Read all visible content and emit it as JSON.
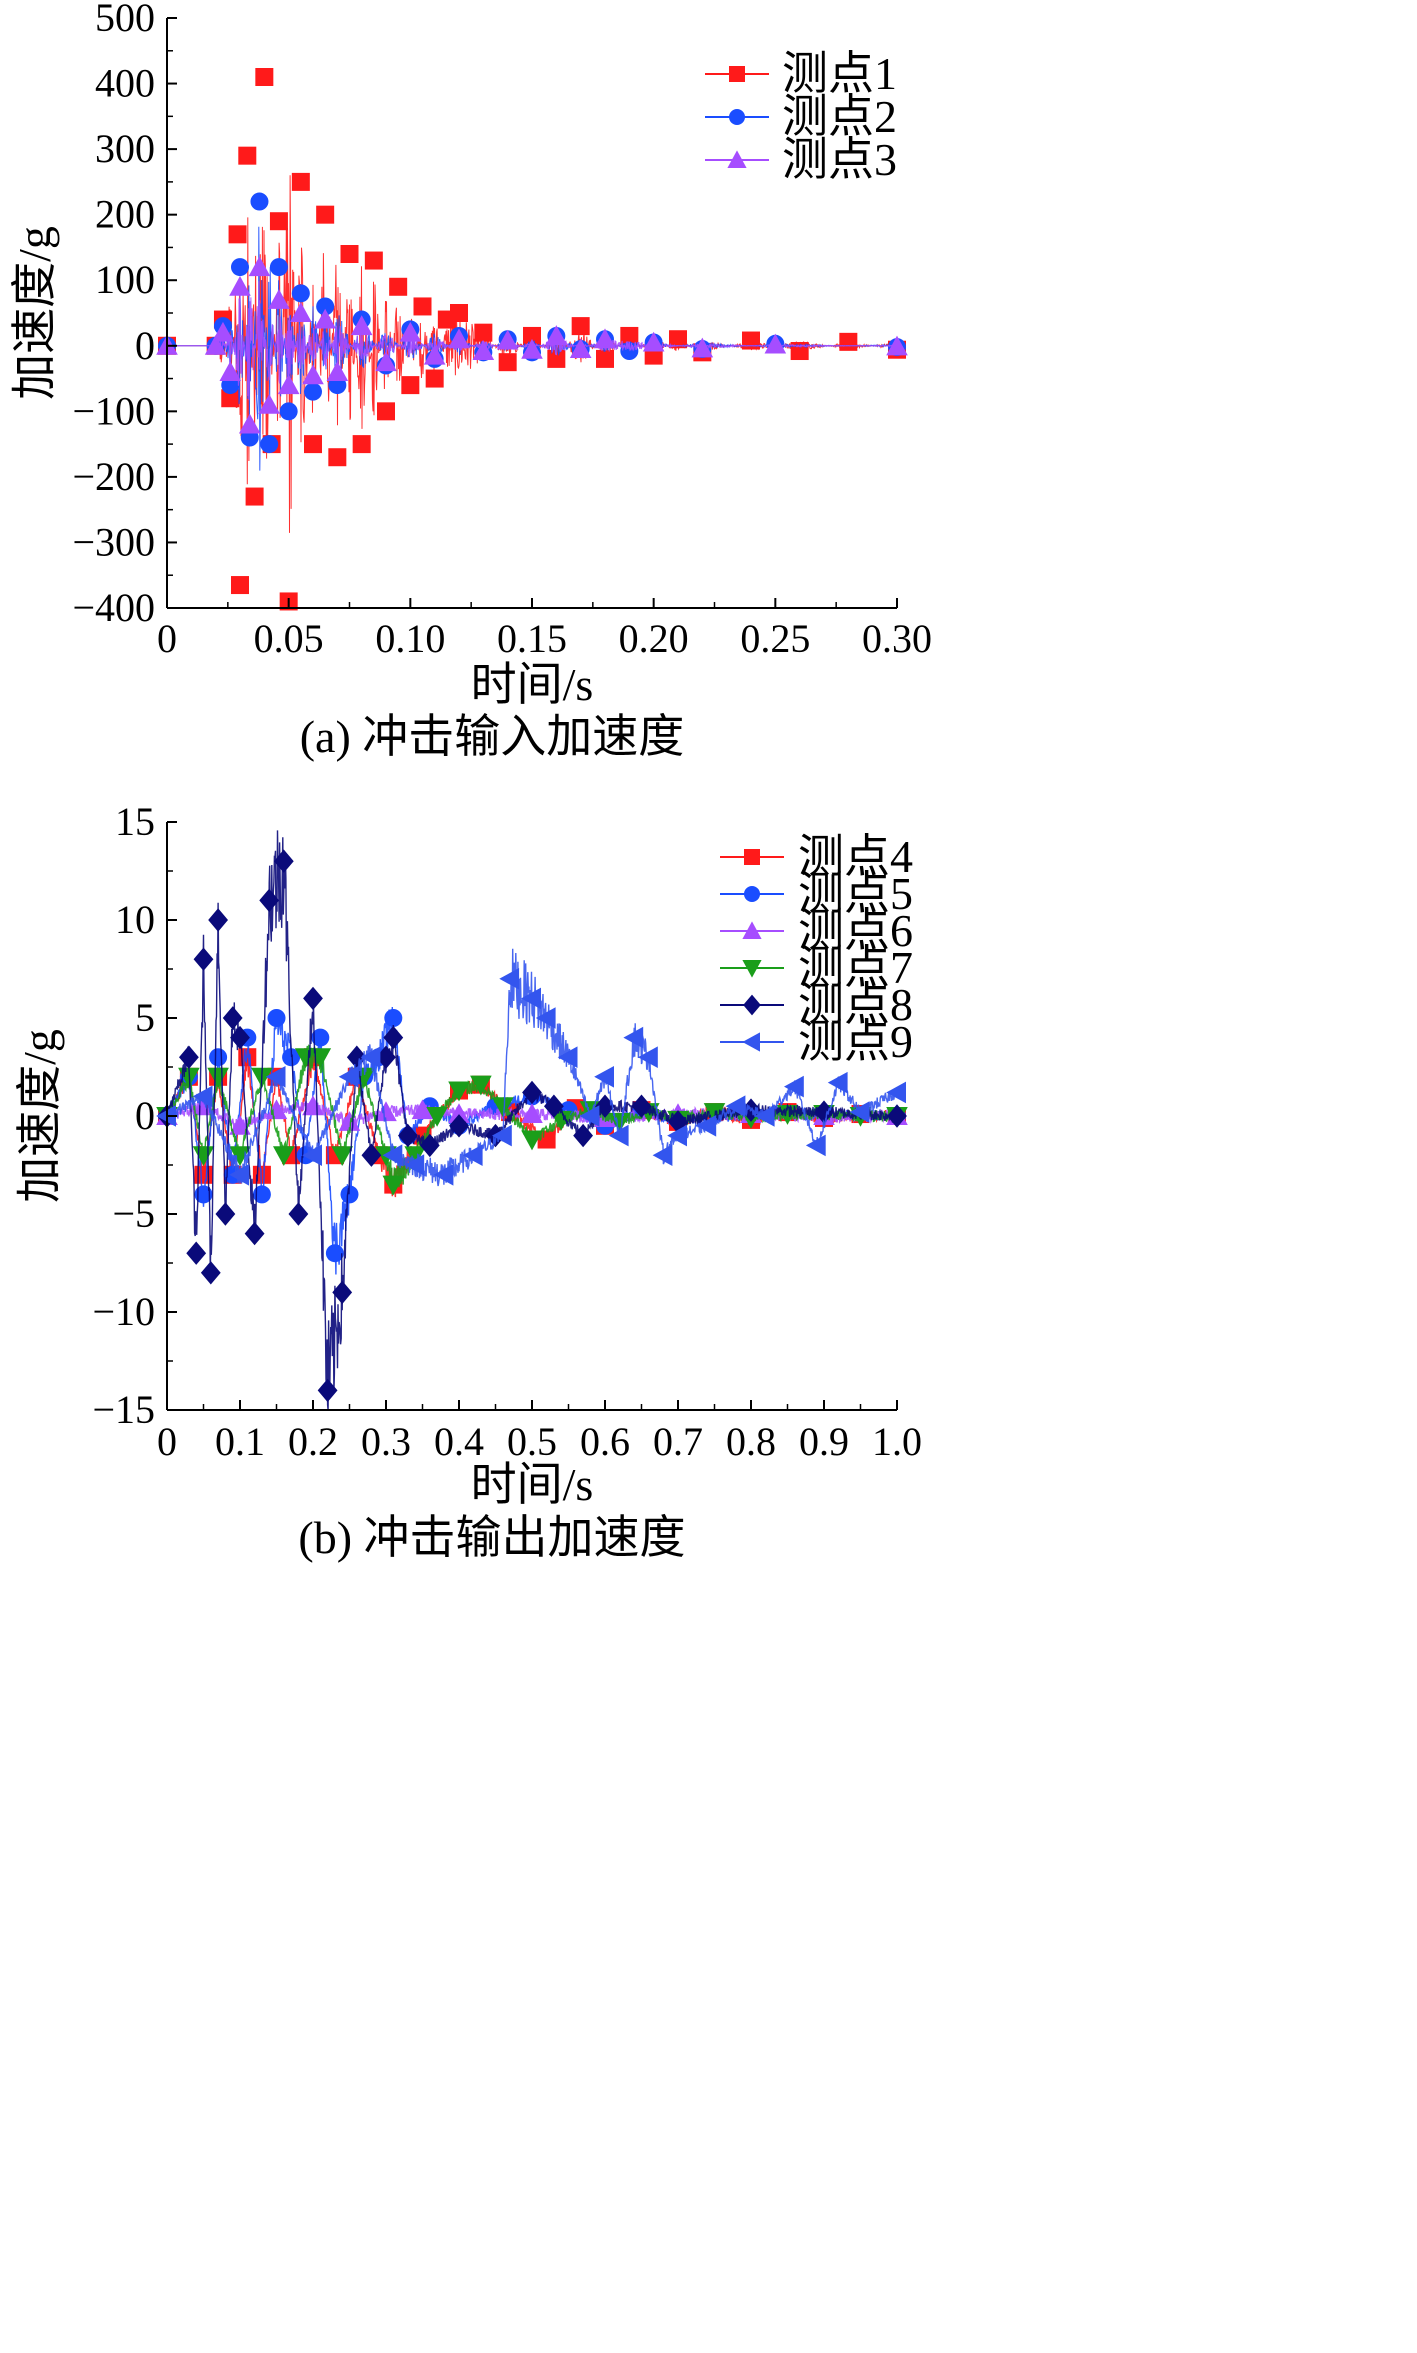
{
  "chart_data": [
    {
      "type": "line",
      "caption": "(a) 冲击输入加速度",
      "xlabel": "时间/s",
      "ylabel": "加速度/g",
      "xlim": [
        0,
        0.3
      ],
      "ylim": [
        -400,
        500
      ],
      "xticks": [
        "0",
        "0.05",
        "0.10",
        "0.15",
        "0.20",
        "0.25",
        "0.30"
      ],
      "yticks": [
        "500",
        "400",
        "300",
        "200",
        "100",
        "0",
        "−100",
        "−200",
        "−300",
        "−400"
      ],
      "legend_position": "top-right",
      "series": [
        {
          "name": "测点1",
          "color": "#ff1a1a",
          "marker": "square",
          "x": [
            0.0,
            0.02,
            0.023,
            0.026,
            0.029,
            0.03,
            0.033,
            0.036,
            0.04,
            0.043,
            0.046,
            0.05,
            0.055,
            0.06,
            0.065,
            0.07,
            0.075,
            0.08,
            0.085,
            0.09,
            0.095,
            0.1,
            0.105,
            0.11,
            0.115,
            0.12,
            0.13,
            0.14,
            0.15,
            0.16,
            0.17,
            0.18,
            0.19,
            0.2,
            0.21,
            0.22,
            0.24,
            0.26,
            0.28,
            0.3
          ],
          "y": [
            0,
            0,
            40,
            -80,
            170,
            -365,
            290,
            -230,
            410,
            -150,
            190,
            -390,
            250,
            -150,
            200,
            -170,
            140,
            -150,
            130,
            -100,
            90,
            -60,
            60,
            -50,
            40,
            50,
            20,
            -25,
            15,
            -20,
            30,
            -20,
            15,
            -15,
            10,
            -10,
            8,
            -8,
            6,
            -6
          ]
        },
        {
          "name": "测点2",
          "color": "#1a4dff",
          "marker": "circle",
          "x": [
            0.0,
            0.02,
            0.023,
            0.026,
            0.03,
            0.034,
            0.038,
            0.042,
            0.046,
            0.05,
            0.055,
            0.06,
            0.065,
            0.07,
            0.08,
            0.09,
            0.1,
            0.11,
            0.12,
            0.13,
            0.14,
            0.15,
            0.16,
            0.17,
            0.18,
            0.19,
            0.2,
            0.22,
            0.25,
            0.3
          ],
          "y": [
            0,
            0,
            30,
            -60,
            120,
            -140,
            220,
            -150,
            120,
            -100,
            80,
            -70,
            60,
            -60,
            40,
            -30,
            25,
            -20,
            15,
            -10,
            10,
            -10,
            15,
            -5,
            10,
            -8,
            5,
            -5,
            3,
            -2
          ]
        },
        {
          "name": "测点3",
          "color": "#a64dff",
          "marker": "triangle-up",
          "x": [
            0.0,
            0.02,
            0.023,
            0.026,
            0.03,
            0.034,
            0.038,
            0.042,
            0.046,
            0.05,
            0.055,
            0.06,
            0.065,
            0.07,
            0.08,
            0.09,
            0.1,
            0.11,
            0.12,
            0.13,
            0.14,
            0.15,
            0.16,
            0.17,
            0.18,
            0.2,
            0.22,
            0.25,
            0.3
          ],
          "y": [
            0,
            0,
            20,
            -40,
            90,
            -120,
            120,
            -90,
            70,
            -60,
            50,
            -45,
            40,
            -40,
            30,
            -25,
            20,
            -15,
            10,
            -8,
            8,
            -6,
            15,
            -5,
            10,
            5,
            -4,
            2,
            -1
          ]
        }
      ]
    },
    {
      "type": "line",
      "caption": "(b) 冲击输出加速度",
      "xlabel": "时间/s",
      "ylabel": "加速度/g",
      "xlim": [
        0,
        1.0
      ],
      "ylim": [
        -15,
        15
      ],
      "xticks": [
        "0",
        "0.1",
        "0.2",
        "0.3",
        "0.4",
        "0.5",
        "0.6",
        "0.7",
        "0.8",
        "0.9",
        "1.0"
      ],
      "yticks": [
        "15",
        "10",
        "5",
        "0",
        "−5",
        "−10",
        "−15"
      ],
      "legend_position": "top-right",
      "series": [
        {
          "name": "测点4",
          "color": "#ff1a1a",
          "marker": "square",
          "x": [
            0.0,
            0.03,
            0.05,
            0.07,
            0.09,
            0.11,
            0.13,
            0.15,
            0.17,
            0.2,
            0.23,
            0.26,
            0.29,
            0.31,
            0.35,
            0.4,
            0.43,
            0.47,
            0.52,
            0.56,
            0.6,
            0.65,
            0.7,
            0.75,
            0.8,
            0.85,
            0.9,
            0.95,
            1.0
          ],
          "y": [
            0,
            2,
            -3,
            2,
            -3,
            3,
            -3,
            2,
            -2,
            3,
            -2,
            2,
            -2,
            -3.5,
            -1,
            1.3,
            1.6,
            0.2,
            -1.2,
            0.4,
            -0.5,
            0.3,
            -0.3,
            0.2,
            -0.2,
            0.2,
            -0.1,
            0.1,
            0
          ]
        },
        {
          "name": "测点5",
          "color": "#1a4dff",
          "marker": "circle",
          "x": [
            0.0,
            0.03,
            0.05,
            0.07,
            0.09,
            0.11,
            0.13,
            0.15,
            0.17,
            0.19,
            0.21,
            0.23,
            0.25,
            0.27,
            0.29,
            0.31,
            0.33,
            0.36,
            0.4,
            0.45,
            0.5,
            0.55,
            0.6,
            0.65,
            0.7,
            0.8,
            0.9,
            1.0
          ],
          "y": [
            0,
            2,
            -4,
            3,
            -3,
            4,
            -4,
            5,
            3,
            -2,
            4,
            -7,
            -4,
            2,
            3,
            5,
            -1,
            0.5,
            -0.5,
            0.5,
            1,
            0.3,
            -0.5,
            0.3,
            -0.2,
            0.1,
            0.1,
            0
          ]
        },
        {
          "name": "测点6",
          "color": "#a64dff",
          "marker": "triangle-up",
          "x": [
            0.0,
            0.05,
            0.1,
            0.15,
            0.2,
            0.25,
            0.3,
            0.35,
            0.4,
            0.5,
            0.6,
            0.7,
            0.8,
            0.9,
            1.0
          ],
          "y": [
            0,
            0.5,
            -0.5,
            0.3,
            0.5,
            -0.3,
            0.2,
            0.3,
            0.1,
            0.1,
            -0.1,
            0.1,
            0.1,
            0,
            0
          ]
        },
        {
          "name": "测点7",
          "color": "#1a9e1a",
          "marker": "triangle-down",
          "x": [
            0.0,
            0.03,
            0.05,
            0.07,
            0.1,
            0.13,
            0.16,
            0.19,
            0.21,
            0.24,
            0.27,
            0.3,
            0.31,
            0.34,
            0.37,
            0.4,
            0.43,
            0.46,
            0.5,
            0.54,
            0.58,
            0.62,
            0.66,
            0.7,
            0.75,
            0.8,
            0.85,
            0.9,
            0.95,
            1.0
          ],
          "y": [
            0,
            2,
            -2,
            2,
            -2,
            2,
            -2,
            3,
            3,
            -2,
            2,
            -2,
            -3.5,
            -2,
            0,
            1.3,
            1.6,
            0.5,
            -1.2,
            -0.2,
            0.3,
            -0.3,
            0.2,
            -0.2,
            0.2,
            -0.1,
            0.1,
            0.1,
            0,
            0
          ]
        },
        {
          "name": "测点8",
          "color": "#0a0a7a",
          "marker": "diamond",
          "x": [
            0.0,
            0.03,
            0.04,
            0.05,
            0.06,
            0.07,
            0.08,
            0.09,
            0.1,
            0.12,
            0.14,
            0.16,
            0.18,
            0.2,
            0.22,
            0.24,
            0.26,
            0.28,
            0.3,
            0.31,
            0.33,
            0.36,
            0.4,
            0.45,
            0.5,
            0.53,
            0.57,
            0.6,
            0.65,
            0.7,
            0.8,
            0.9,
            1.0
          ],
          "y": [
            0,
            3,
            -7,
            8,
            -8,
            10,
            -5,
            5,
            4,
            -6,
            11,
            13,
            -5,
            6,
            -14,
            -9,
            3,
            -2,
            3,
            4,
            -1,
            -1.5,
            -0.5,
            -1,
            1.2,
            0.5,
            -1,
            0.5,
            0.5,
            -0.3,
            0.3,
            0.2,
            0
          ]
        },
        {
          "name": "测点9",
          "color": "#3355ee",
          "marker": "triangle-left",
          "x": [
            0.0,
            0.05,
            0.1,
            0.15,
            0.2,
            0.25,
            0.28,
            0.31,
            0.34,
            0.38,
            0.42,
            0.46,
            0.47,
            0.5,
            0.52,
            0.55,
            0.58,
            0.6,
            0.62,
            0.64,
            0.66,
            0.68,
            0.7,
            0.74,
            0.78,
            0.82,
            0.86,
            0.89,
            0.92,
            0.95,
            1.0
          ],
          "y": [
            0,
            1,
            -3,
            2,
            -2,
            2,
            3,
            -2,
            -2.5,
            -3,
            -2,
            -1,
            7,
            6,
            5,
            3,
            0,
            2,
            -1,
            4,
            3,
            -2,
            -1,
            -0.5,
            0.5,
            0,
            1.5,
            -1.5,
            1.7,
            0.2,
            1.2
          ]
        }
      ]
    }
  ]
}
